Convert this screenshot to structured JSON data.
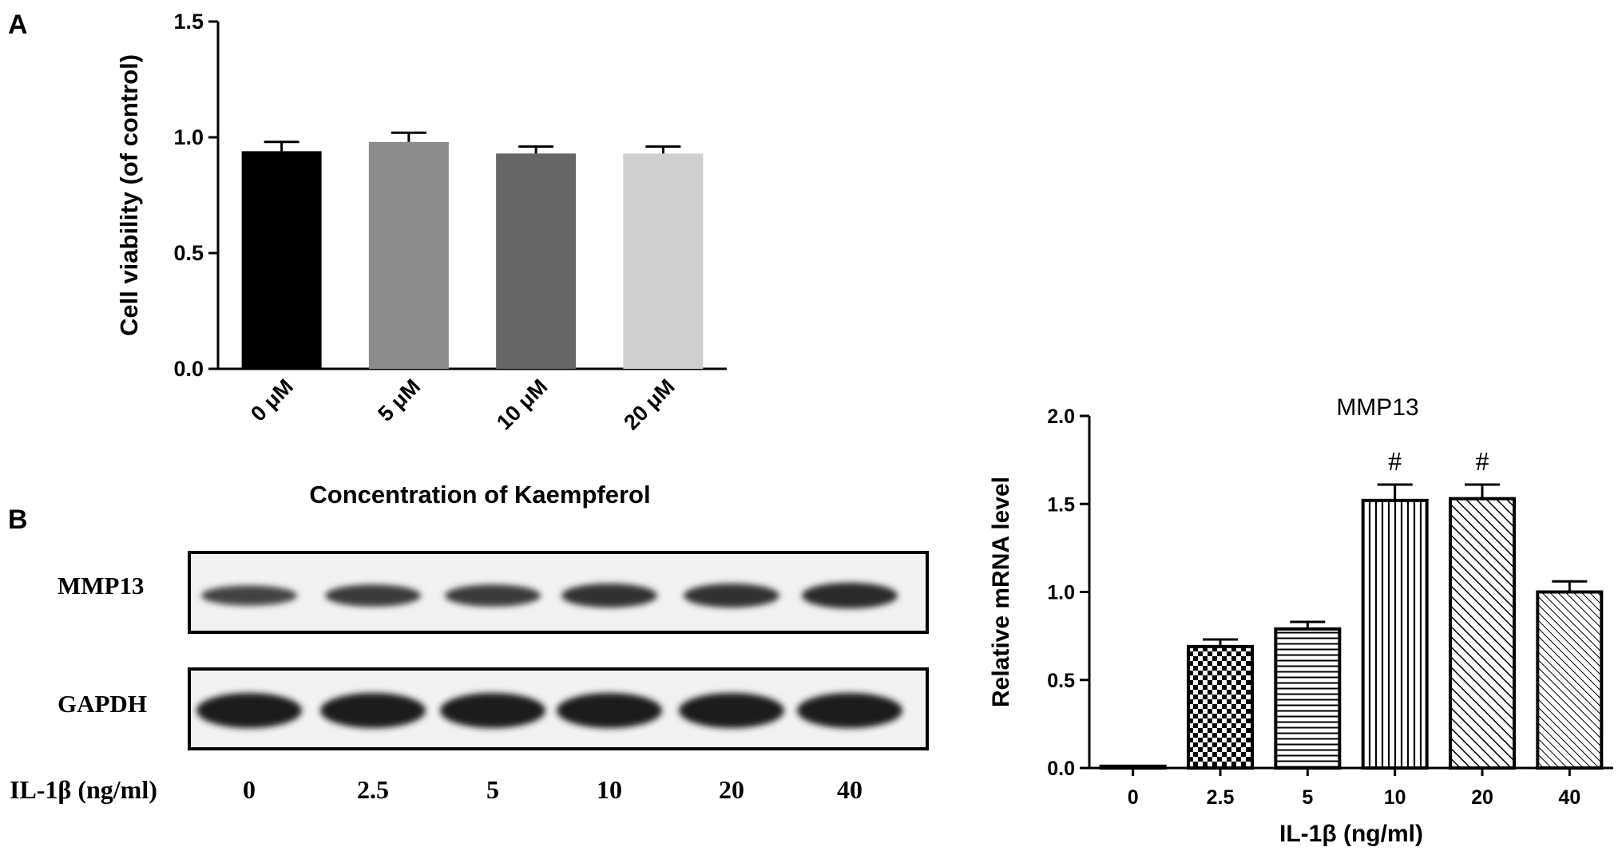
{
  "panels": {
    "a": {
      "letter": "A"
    },
    "b": {
      "letter": "B"
    }
  },
  "chart_data": [
    {
      "type": "bar",
      "panel": "A",
      "title": "",
      "xlabel": "Concentration of Kaempferol",
      "ylabel": "Cell viability (of control)",
      "categories": [
        "0 μM",
        "5 μM",
        "10 μM",
        "20 μM"
      ],
      "values": [
        0.94,
        0.98,
        0.93,
        0.93
      ],
      "errors": [
        0.04,
        0.04,
        0.03,
        0.03
      ],
      "colors": [
        "#000000",
        "#8c8c8c",
        "#666666",
        "#cfcfcf"
      ],
      "ylim": [
        0,
        1.5
      ],
      "yticks": [
        "0.0",
        "0.5",
        "1.0",
        "1.5"
      ],
      "grid": false
    },
    {
      "type": "bar",
      "panel": "B",
      "title": "MMP13",
      "xlabel": "IL-1β (ng/ml)",
      "ylabel": "Relative mRNA level",
      "categories": [
        "0",
        "2.5",
        "5",
        "10",
        "20",
        "40"
      ],
      "values": [
        0.01,
        0.69,
        0.79,
        1.52,
        1.53,
        1.0
      ],
      "errors": [
        0.0,
        0.04,
        0.04,
        0.09,
        0.08,
        0.06
      ],
      "patterns": [
        "solid",
        "checker",
        "horizontal",
        "vertical",
        "diagonal",
        "diagonal-dense"
      ],
      "annotations": [
        "",
        "",
        "",
        "#",
        "#",
        ""
      ],
      "ylim": [
        0,
        2.0
      ],
      "yticks": [
        "0.0",
        "0.5",
        "1.0",
        "1.5",
        "2.0"
      ],
      "grid": false
    }
  ],
  "blot": {
    "rows": [
      {
        "label": "MMP13",
        "intensities": [
          0.55,
          0.65,
          0.65,
          0.75,
          0.75,
          0.85
        ]
      },
      {
        "label": "GAPDH",
        "intensities": [
          1,
          1,
          1,
          1,
          1,
          1
        ]
      }
    ],
    "lane_axis_label": "IL-1β (ng/ml)",
    "lanes": [
      "0",
      "2.5",
      "5",
      "10",
      "20",
      "40"
    ]
  }
}
